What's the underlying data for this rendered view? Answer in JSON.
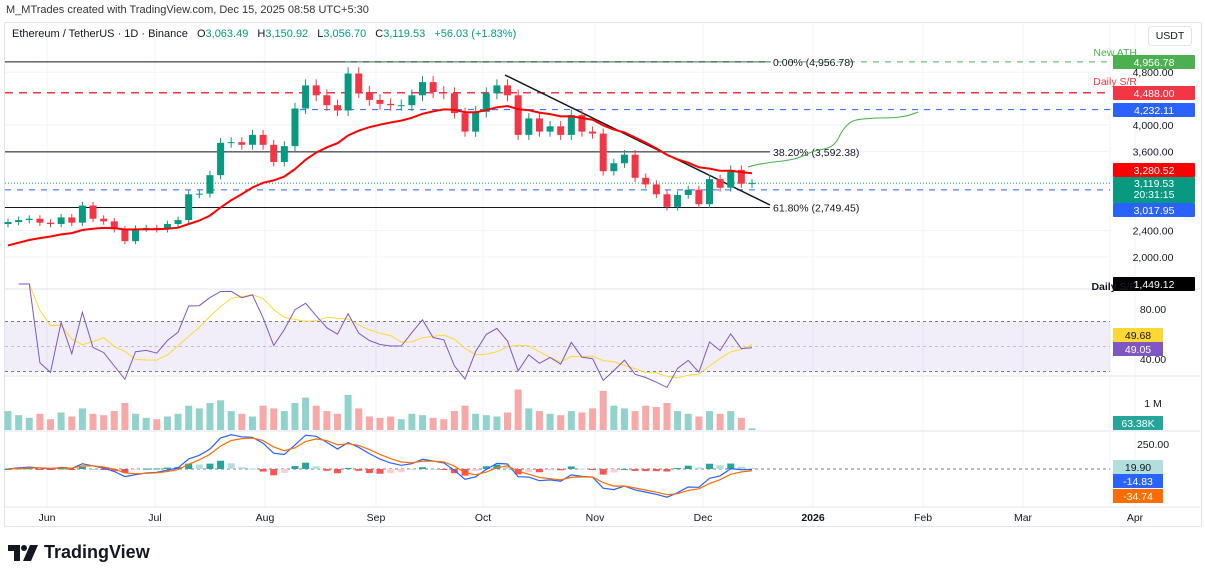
{
  "header": {
    "credit": "M_MTrades created with TradingView.com, Dec 15, 2025 08:58 UTC+5:30",
    "symbol": "Ethereum / TetherUS · 1D · Binance",
    "open_label": "O",
    "open": "3,063.49",
    "high_label": "H",
    "high": "3,150.92",
    "low_label": "L",
    "low": "3,056.70",
    "close_label": "C",
    "close": "3,119.53",
    "change": "+56.03 (+1.83%)"
  },
  "currency": "USDT",
  "branding": "TradingView",
  "colors": {
    "up": "#089981",
    "down": "#f23645",
    "ema": "#ff0000",
    "rsi": "#7e57c2",
    "rsi_ma": "#fdd835",
    "macd": "#2962ff",
    "signal": "#ff6d00",
    "ath": "#4caf50",
    "sr_red": "#f23645",
    "sr_blue": "#2962ff",
    "projection": "#4caf50"
  },
  "chart_data": {
    "type": "candlestick",
    "title": "",
    "price_ticks": [
      {
        "label": "4,800.00",
        "value": 4800
      },
      {
        "label": "4,000.00",
        "value": 4000
      },
      {
        "label": "3,600.00",
        "value": 3600
      },
      {
        "label": "2,400.00",
        "value": 2400
      },
      {
        "label": "2,000.00",
        "value": 2000
      }
    ],
    "date_ticks": [
      "Jun",
      "Jul",
      "Aug",
      "Sep",
      "Oct",
      "Nov",
      "Dec",
      "2026",
      "Feb",
      "Mar",
      "Apr"
    ],
    "closes": [
      2530,
      2560,
      2580,
      2520,
      2500,
      2600,
      2520,
      2780,
      2580,
      2540,
      2420,
      2240,
      2430,
      2440,
      2420,
      2500,
      2560,
      2950,
      2960,
      3240,
      3730,
      3740,
      3700,
      3850,
      3700,
      3440,
      3680,
      4250,
      4600,
      4450,
      4300,
      4220,
      4780,
      4500,
      4380,
      4320,
      4300,
      4300,
      4450,
      4650,
      4500,
      4480,
      4180,
      3900,
      4200,
      4480,
      4600,
      4450,
      3850,
      4100,
      3900,
      3980,
      3850,
      4150,
      3900,
      3870,
      3300,
      3420,
      3550,
      3200,
      3100,
      2950,
      2760,
      2940,
      3020,
      2800,
      3180,
      3050,
      3320,
      3110,
      3119.53
    ],
    "volumes_k": [
      700,
      550,
      450,
      600,
      400,
      650,
      500,
      800,
      600,
      550,
      700,
      1000,
      600,
      450,
      400,
      500,
      600,
      900,
      800,
      1000,
      1100,
      700,
      600,
      500,
      900,
      800,
      700,
      1000,
      1200,
      900,
      700,
      600,
      1300,
      800,
      500,
      450,
      500,
      400,
      600,
      550,
      450,
      400,
      700,
      900,
      600,
      550,
      500,
      650,
      1500,
      800,
      700,
      600,
      550,
      700,
      650,
      800,
      1450,
      900,
      800,
      700,
      900,
      850,
      1000,
      700,
      600,
      500,
      700,
      600,
      700,
      450,
      63.38
    ],
    "levels": [
      {
        "name": "fib-0",
        "label": "0.00% (4,956.78)",
        "value": 4956.78,
        "badge": "4,956.78",
        "tag": "New ATH"
      },
      {
        "name": "daily-sr-red",
        "value": 4488.0,
        "badge": "4,488.00",
        "tag": "Daily S/R"
      },
      {
        "name": "resistance-blue",
        "value": 4232.11,
        "badge": "4,232.11"
      },
      {
        "name": "fib-38",
        "label": "38.20% (3,592.38)",
        "value": 3592.38
      },
      {
        "name": "ema",
        "value": 3280.52,
        "badge": "3,280.52"
      },
      {
        "name": "last-price",
        "value": 3119.53,
        "badge": "3,119.53",
        "countdown": "20:31:15"
      },
      {
        "name": "support-blue",
        "value": 3017.95,
        "badge": "3,017.95"
      },
      {
        "name": "fib-61",
        "label": "61.80% (2,749.45)",
        "value": 2749.45
      },
      {
        "name": "daily-sr-black",
        "value": 1449.12,
        "badge": "1,449.12",
        "tag": "Daily S/R"
      }
    ],
    "rsi": {
      "ticks": [
        "80.00",
        "40.00"
      ],
      "ma_value": "49.68",
      "value": "49.05",
      "upper": 70,
      "lower": 30
    },
    "volume": {
      "tick": "1 M",
      "value": "63.38K"
    },
    "macd": {
      "tick": "250.00",
      "histogram": "19.90",
      "macd": "-14.83",
      "signal": "-34.74"
    }
  }
}
